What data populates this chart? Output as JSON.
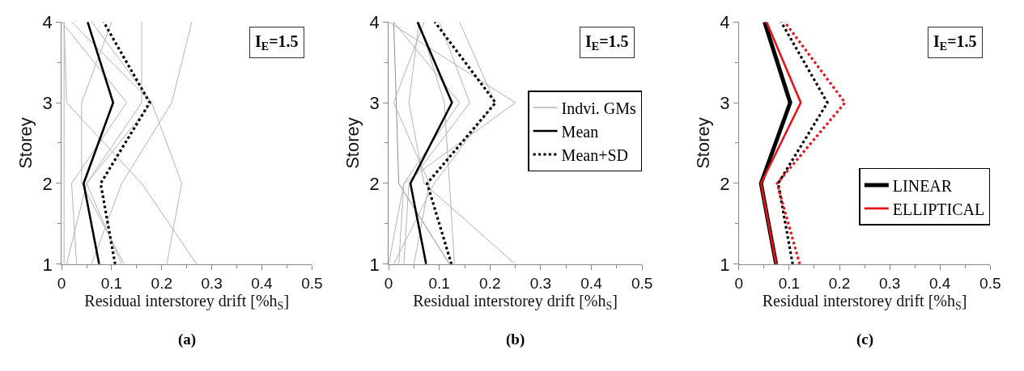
{
  "chart_data": [
    {
      "type": "line",
      "xlabel": "Residual interstorey drift [%h$_{S}$]",
      "ylabel": "Storey",
      "xlim": [
        0,
        0.5
      ],
      "xticks": [
        0,
        0.1,
        0.2,
        0.3,
        0.4,
        0.5
      ],
      "ylim": [
        1,
        4
      ],
      "yticks": [
        1,
        2,
        3,
        4
      ],
      "legend": false,
      "marker": "none",
      "annotations": [
        "I$_{E}$=1.5",
        "(a)"
      ],
      "series": [
        {
          "color": "#b3b3b3",
          "x": [
            0.27,
            0.16,
            0.01,
            0.005
          ],
          "values": [
            1,
            2,
            3,
            4
          ]
        },
        {
          "color": "#b3b3b3",
          "x": [
            0.06,
            0.12,
            0.22,
            0.26
          ],
          "values": [
            1,
            2,
            3,
            4
          ]
        },
        {
          "color": "#b3b3b3",
          "x": [
            0.01,
            0.05,
            0.16,
            0.16
          ],
          "values": [
            1,
            2,
            3,
            4
          ]
        },
        {
          "color": "#b3b3b3",
          "x": [
            0.03,
            0.02,
            0.13,
            0.0
          ],
          "values": [
            1,
            2,
            3,
            4
          ]
        },
        {
          "color": "#b3b3b3",
          "x": [
            0.125,
            0.04,
            0.04,
            0.1
          ],
          "values": [
            1,
            2,
            3,
            4
          ]
        },
        {
          "color": "#b3b3b3",
          "x": [
            0.21,
            0.24,
            0.18,
            0.02
          ],
          "values": [
            1,
            2,
            3,
            4
          ]
        },
        {
          "color": "#b3b3b3",
          "x": [
            0.12,
            0.05,
            0.18,
            0.06
          ],
          "values": [
            1,
            2,
            3,
            4
          ]
        },
        {
          "color": "#b3b3b3",
          "x": [
            0.005,
            0.005,
            0.005,
            0.005
          ],
          "values": [
            1,
            2,
            3,
            4
          ]
        },
        {
          "color": "#000000",
          "line_style": "solid",
          "x": [
            0.075,
            0.044,
            0.103,
            0.052
          ],
          "values": [
            1,
            2,
            3,
            4
          ]
        },
        {
          "color": "#000000",
          "line_style": "dotted",
          "x": [
            0.107,
            0.078,
            0.176,
            0.084
          ],
          "values": [
            1,
            2,
            3,
            4
          ]
        }
      ]
    },
    {
      "type": "line",
      "xlabel": "Residual interstorey drift [%h$_{S}$]",
      "ylabel": "Storey",
      "xlim": [
        0,
        0.5
      ],
      "xticks": [
        0,
        0.1,
        0.2,
        0.3,
        0.4,
        0.5
      ],
      "ylim": [
        1,
        4
      ],
      "yticks": [
        1,
        2,
        3,
        4
      ],
      "legend": "right",
      "marker": "none",
      "annotations": [
        "I$_{E}$=1.5",
        "(b)"
      ],
      "series": [
        {
          "name": "Indvi. GMs",
          "color": "#8c8c8c",
          "x": [
            0.12,
            0.02,
            0.015,
            0.01
          ],
          "values": [
            1,
            2,
            3,
            4
          ]
        },
        {
          "color": "#b3b3b3",
          "x": [
            0.0,
            0.03,
            0.25,
            0.0
          ],
          "values": [
            1,
            2,
            3,
            4
          ]
        },
        {
          "color": "#b3b3b3",
          "x": [
            0.01,
            0.09,
            0.21,
            0.14
          ],
          "values": [
            1,
            2,
            3,
            4
          ]
        },
        {
          "color": "#b3b3b3",
          "x": [
            0.03,
            0.04,
            0.16,
            0.1
          ],
          "values": [
            1,
            2,
            3,
            4
          ]
        },
        {
          "color": "#b3b3b3",
          "x": [
            0.13,
            0.12,
            0.11,
            0.06
          ],
          "values": [
            1,
            2,
            3,
            4
          ]
        },
        {
          "color": "#b3b3b3",
          "x": [
            0.05,
            0.08,
            0.01,
            0.07
          ],
          "values": [
            1,
            2,
            3,
            4
          ]
        },
        {
          "color": "#b3b3b3",
          "x": [
            0.02,
            0.03,
            0.14,
            0.01
          ],
          "values": [
            1,
            2,
            3,
            4
          ]
        },
        {
          "color": "#b3b3b3",
          "x": [
            0.25,
            0.07,
            0.04,
            0.06
          ],
          "values": [
            1,
            2,
            3,
            4
          ]
        },
        {
          "name": "Mean",
          "color": "#000000",
          "line_style": "solid",
          "x": [
            0.074,
            0.043,
            0.125,
            0.057
          ],
          "values": [
            1,
            2,
            3,
            4
          ]
        },
        {
          "name": "Mean+SD",
          "color": "#000000",
          "line_style": "dotted",
          "x": [
            0.124,
            0.076,
            0.211,
            0.091
          ],
          "values": [
            1,
            2,
            3,
            4
          ]
        }
      ]
    },
    {
      "type": "line",
      "xlabel": "Residual interstorey drift [%h$_{S}$]",
      "ylabel": "Storey",
      "xlim": [
        0,
        0.5
      ],
      "xticks": [
        0,
        0.1,
        0.2,
        0.3,
        0.4,
        0.5
      ],
      "ylim": [
        1,
        4
      ],
      "yticks": [
        1,
        2,
        3,
        4
      ],
      "legend": "bottom right",
      "marker": "none",
      "annotations": [
        "I$_{E}$=1.5",
        "(c)"
      ],
      "series": [
        {
          "name": "LINEAR",
          "color": "#000000",
          "line_style": "solid",
          "x": [
            0.074,
            0.044,
            0.102,
            0.051
          ],
          "values": [
            1,
            2,
            3,
            4
          ]
        },
        {
          "name": "ELLIPTICAL",
          "color": "#e8141c",
          "line_style": "solid",
          "x": [
            0.074,
            0.044,
            0.123,
            0.055
          ],
          "values": [
            1,
            2,
            3,
            4
          ]
        },
        {
          "color": "#000000",
          "line_style": "dotted",
          "x": [
            0.107,
            0.078,
            0.176,
            0.084
          ],
          "values": [
            1,
            2,
            3,
            4
          ]
        },
        {
          "color": "#e8141c",
          "line_style": "dotted",
          "x": [
            0.121,
            0.076,
            0.211,
            0.091
          ],
          "values": [
            1,
            2,
            3,
            4
          ]
        }
      ]
    }
  ]
}
